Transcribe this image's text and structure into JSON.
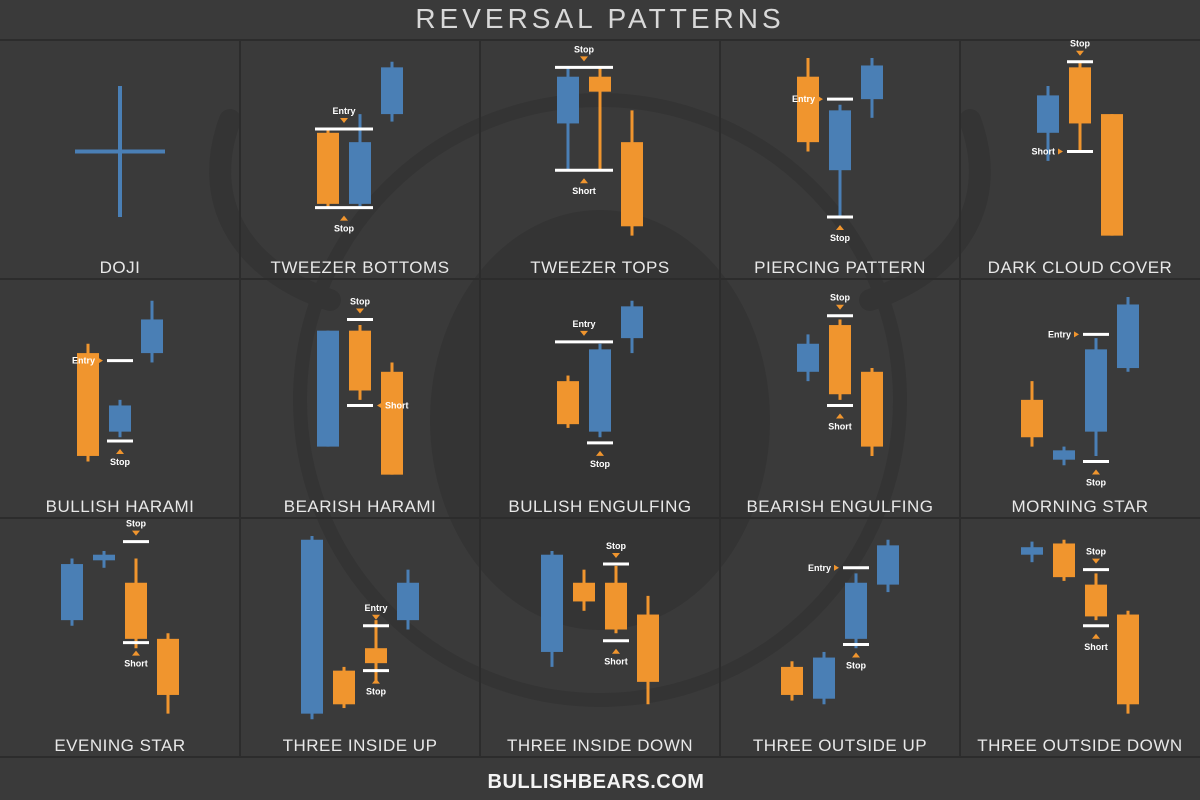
{
  "header": {
    "title": "REVERSAL PATTERNS"
  },
  "footer": {
    "site": "BULLISHBEARS.COM"
  },
  "colors": {
    "background": "#3a3a3a",
    "panel_border": "#2c2c2c",
    "bull": "#4a7fb5",
    "bear": "#f0952e",
    "marker_line": "#ffffff",
    "text": "#e8e8e8"
  },
  "chart_data": [
    {
      "type": "candlestick",
      "title": "DOJI",
      "candles": [
        {
          "dir": "neutral",
          "o": 50,
          "h": 85,
          "l": 15,
          "c": 50
        }
      ],
      "markers": []
    },
    {
      "type": "candlestick",
      "title": "TWEEZER BOTTOMS",
      "candles": [
        {
          "dir": "down",
          "o": 60,
          "h": 62,
          "l": 20,
          "c": 22
        },
        {
          "dir": "up",
          "o": 22,
          "h": 70,
          "l": 20,
          "c": 55
        },
        {
          "dir": "up",
          "o": 70,
          "h": 98,
          "l": 66,
          "c": 95
        }
      ],
      "markers": [
        {
          "text": "Entry",
          "kind": "entry",
          "level": 62,
          "from": 0,
          "to": 1,
          "label_side": "above"
        },
        {
          "text": "Stop",
          "kind": "stop",
          "level": 20,
          "from": 0,
          "to": 1,
          "label_side": "below"
        }
      ]
    },
    {
      "type": "candlestick",
      "title": "TWEEZER TOPS",
      "candles": [
        {
          "dir": "up",
          "o": 65,
          "h": 95,
          "l": 40,
          "c": 90
        },
        {
          "dir": "down",
          "o": 90,
          "h": 95,
          "l": 40,
          "c": 82
        },
        {
          "dir": "down",
          "o": 55,
          "h": 72,
          "l": 5,
          "c": 10
        }
      ],
      "markers": [
        {
          "text": "Stop",
          "kind": "stop",
          "level": 95,
          "from": 0,
          "to": 1,
          "label_side": "above"
        },
        {
          "text": "Short",
          "kind": "short",
          "level": 40,
          "from": 0,
          "to": 1,
          "label_side": "below"
        }
      ]
    },
    {
      "type": "candlestick",
      "title": "PIERCING PATTERN",
      "candles": [
        {
          "dir": "down",
          "o": 90,
          "h": 100,
          "l": 50,
          "c": 55
        },
        {
          "dir": "up",
          "o": 40,
          "h": 75,
          "l": 15,
          "c": 72
        },
        {
          "dir": "up",
          "o": 78,
          "h": 100,
          "l": 68,
          "c": 96
        }
      ],
      "markers": [
        {
          "text": "Entry",
          "kind": "entry",
          "level": 78,
          "from": 1,
          "to": 1,
          "label_side": "left"
        },
        {
          "text": "Stop",
          "kind": "stop",
          "level": 15,
          "from": 1,
          "to": 1,
          "label_side": "below"
        }
      ]
    },
    {
      "type": "candlestick",
      "title": "DARK CLOUD COVER",
      "candles": [
        {
          "dir": "up",
          "o": 60,
          "h": 85,
          "l": 45,
          "c": 80
        },
        {
          "dir": "down",
          "o": 95,
          "h": 98,
          "l": 50,
          "c": 65
        },
        {
          "dir": "down",
          "o": 70,
          "h": 70,
          "l": 5,
          "c": 5
        }
      ],
      "markers": [
        {
          "text": "Stop",
          "kind": "stop",
          "level": 98,
          "from": 1,
          "to": 1,
          "label_side": "above"
        },
        {
          "text": "Short",
          "kind": "short",
          "level": 50,
          "from": 1,
          "to": 1,
          "label_side": "left"
        }
      ]
    },
    {
      "type": "candlestick",
      "title": "BULLISH HARAMI",
      "candles": [
        {
          "dir": "down",
          "o": 70,
          "h": 75,
          "l": 12,
          "c": 15
        },
        {
          "dir": "up",
          "o": 28,
          "h": 45,
          "l": 25,
          "c": 42
        },
        {
          "dir": "up",
          "o": 70,
          "h": 98,
          "l": 65,
          "c": 88
        }
      ],
      "markers": [
        {
          "text": "Entry",
          "kind": "entry",
          "level": 66,
          "from": 1,
          "to": 1,
          "label_side": "left"
        },
        {
          "text": "Stop",
          "kind": "stop",
          "level": 23,
          "from": 1,
          "to": 1,
          "label_side": "below"
        }
      ]
    },
    {
      "type": "candlestick",
      "title": "BEARISH HARAMI",
      "candles": [
        {
          "dir": "up",
          "o": 20,
          "h": 82,
          "l": 20,
          "c": 82
        },
        {
          "dir": "down",
          "o": 82,
          "h": 85,
          "l": 45,
          "c": 50
        },
        {
          "dir": "down",
          "o": 60,
          "h": 65,
          "l": 5,
          "c": 5
        }
      ],
      "markers": [
        {
          "text": "Stop",
          "kind": "stop",
          "level": 88,
          "from": 1,
          "to": 1,
          "label_side": "above"
        },
        {
          "text": "Short",
          "kind": "short",
          "level": 42,
          "from": 1,
          "to": 1,
          "label_side": "right"
        }
      ]
    },
    {
      "type": "candlestick",
      "title": "BULLISH ENGULFING",
      "candles": [
        {
          "dir": "down",
          "o": 55,
          "h": 58,
          "l": 30,
          "c": 32
        },
        {
          "dir": "up",
          "o": 28,
          "h": 75,
          "l": 25,
          "c": 72
        },
        {
          "dir": "up",
          "o": 78,
          "h": 98,
          "l": 70,
          "c": 95
        }
      ],
      "markers": [
        {
          "text": "Entry",
          "kind": "entry",
          "level": 76,
          "from": 0,
          "to": 1,
          "label_side": "above"
        },
        {
          "text": "Stop",
          "kind": "stop",
          "level": 22,
          "from": 1,
          "to": 1,
          "label_side": "below"
        }
      ]
    },
    {
      "type": "candlestick",
      "title": "BEARISH ENGULFING",
      "candles": [
        {
          "dir": "up",
          "o": 60,
          "h": 80,
          "l": 55,
          "c": 75
        },
        {
          "dir": "down",
          "o": 85,
          "h": 88,
          "l": 45,
          "c": 48
        },
        {
          "dir": "down",
          "o": 60,
          "h": 62,
          "l": 15,
          "c": 20
        }
      ],
      "markers": [
        {
          "text": "Stop",
          "kind": "stop",
          "level": 90,
          "from": 1,
          "to": 1,
          "label_side": "above"
        },
        {
          "text": "Short",
          "kind": "short",
          "level": 42,
          "from": 1,
          "to": 1,
          "label_side": "below"
        }
      ]
    },
    {
      "type": "candlestick",
      "title": "MORNING STAR",
      "candles": [
        {
          "dir": "down",
          "o": 45,
          "h": 55,
          "l": 20,
          "c": 25
        },
        {
          "dir": "up",
          "o": 13,
          "h": 20,
          "l": 10,
          "c": 18
        },
        {
          "dir": "up",
          "o": 28,
          "h": 78,
          "l": 15,
          "c": 72
        },
        {
          "dir": "up",
          "o": 62,
          "h": 100,
          "l": 60,
          "c": 96
        }
      ],
      "markers": [
        {
          "text": "Entry",
          "kind": "entry",
          "level": 80,
          "from": 2,
          "to": 2,
          "label_side": "left"
        },
        {
          "text": "Stop",
          "kind": "stop",
          "level": 12,
          "from": 2,
          "to": 2,
          "label_side": "below"
        }
      ]
    },
    {
      "type": "candlestick",
      "title": "EVENING STAR",
      "candles": [
        {
          "dir": "up",
          "o": 55,
          "h": 88,
          "l": 52,
          "c": 85
        },
        {
          "dir": "up",
          "o": 87,
          "h": 92,
          "l": 83,
          "c": 90
        },
        {
          "dir": "down",
          "o": 75,
          "h": 88,
          "l": 40,
          "c": 45
        },
        {
          "dir": "down",
          "o": 45,
          "h": 48,
          "l": 5,
          "c": 15
        }
      ],
      "markers": [
        {
          "text": "Stop",
          "kind": "stop",
          "level": 97,
          "from": 2,
          "to": 2,
          "label_side": "above"
        },
        {
          "text": "Short",
          "kind": "short",
          "level": 43,
          "from": 2,
          "to": 2,
          "label_side": "below"
        }
      ]
    },
    {
      "type": "candlestick",
      "title": "THREE INSIDE UP",
      "candles": [
        {
          "dir": "up",
          "o": 5,
          "h": 100,
          "l": 2,
          "c": 98
        },
        {
          "dir": "down",
          "o": 28,
          "h": 30,
          "l": 8,
          "c": 10
        },
        {
          "dir": "down",
          "o": 40,
          "h": 55,
          "l": 22,
          "c": 32
        },
        {
          "dir": "up",
          "o": 55,
          "h": 82,
          "l": 50,
          "c": 75
        }
      ],
      "markers": [
        {
          "text": "Entry",
          "kind": "entry",
          "level": 52,
          "from": 2,
          "to": 2,
          "label_side": "above"
        },
        {
          "text": "Stop",
          "kind": "stop",
          "level": 28,
          "from": 2,
          "to": 2,
          "label_side": "below"
        }
      ]
    },
    {
      "type": "candlestick",
      "title": "THREE INSIDE DOWN",
      "candles": [
        {
          "dir": "up",
          "o": 38,
          "h": 92,
          "l": 30,
          "c": 90
        },
        {
          "dir": "down",
          "o": 75,
          "h": 82,
          "l": 60,
          "c": 65
        },
        {
          "dir": "down",
          "o": 75,
          "h": 84,
          "l": 48,
          "c": 50
        },
        {
          "dir": "down",
          "o": 58,
          "h": 68,
          "l": 10,
          "c": 22
        }
      ],
      "markers": [
        {
          "text": "Stop",
          "kind": "stop",
          "level": 85,
          "from": 2,
          "to": 2,
          "label_side": "above"
        },
        {
          "text": "Short",
          "kind": "short",
          "level": 44,
          "from": 2,
          "to": 2,
          "label_side": "below"
        }
      ]
    },
    {
      "type": "candlestick",
      "title": "THREE OUTSIDE UP",
      "candles": [
        {
          "dir": "down",
          "o": 30,
          "h": 33,
          "l": 12,
          "c": 15
        },
        {
          "dir": "up",
          "o": 13,
          "h": 38,
          "l": 10,
          "c": 35
        },
        {
          "dir": "up",
          "o": 45,
          "h": 80,
          "l": 40,
          "c": 75
        },
        {
          "dir": "up",
          "o": 74,
          "h": 98,
          "l": 70,
          "c": 95
        }
      ],
      "markers": [
        {
          "text": "Entry",
          "kind": "entry",
          "level": 83,
          "from": 2,
          "to": 2,
          "label_side": "left"
        },
        {
          "text": "Stop",
          "kind": "stop",
          "level": 42,
          "from": 2,
          "to": 2,
          "label_side": "below"
        }
      ]
    },
    {
      "type": "candlestick",
      "title": "THREE OUTSIDE DOWN",
      "candles": [
        {
          "dir": "up",
          "o": 90,
          "h": 97,
          "l": 86,
          "c": 94
        },
        {
          "dir": "down",
          "o": 96,
          "h": 98,
          "l": 76,
          "c": 78
        },
        {
          "dir": "down",
          "o": 74,
          "h": 80,
          "l": 55,
          "c": 57
        },
        {
          "dir": "down",
          "o": 58,
          "h": 60,
          "l": 5,
          "c": 10
        }
      ],
      "markers": [
        {
          "text": "Stop",
          "kind": "stop",
          "level": 82,
          "from": 2,
          "to": 2,
          "label_side": "above"
        },
        {
          "text": "Short",
          "kind": "short",
          "level": 52,
          "from": 2,
          "to": 2,
          "label_side": "below"
        }
      ]
    }
  ]
}
